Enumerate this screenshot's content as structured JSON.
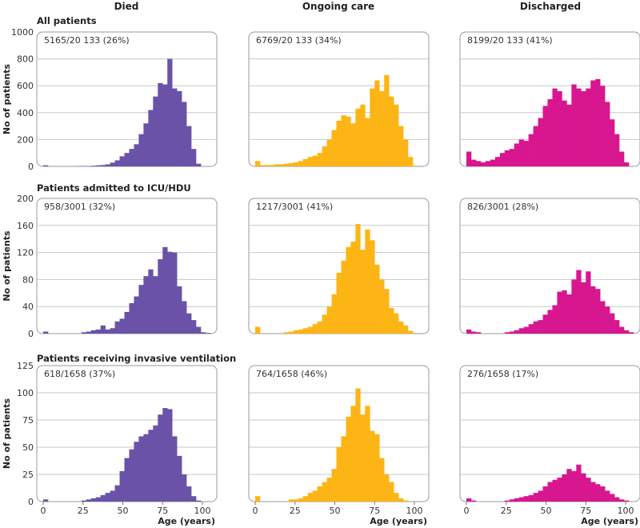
{
  "colors": {
    "died": "#6a52a8",
    "ongoing": "#fdb515",
    "discharged": "#d8168f",
    "grid": "#c8c8c8",
    "frame": "#999999"
  },
  "chart_data": {
    "type": "bar",
    "column_titles": [
      "Died",
      "Ongoing care",
      "Discharged"
    ],
    "ylabel": "No of patients",
    "xlabel": "Age (years)",
    "x_ticks": [
      0,
      25,
      50,
      75,
      100
    ],
    "bin_width_years": 3,
    "bin_starts": [
      0,
      3,
      6,
      9,
      12,
      15,
      18,
      21,
      24,
      27,
      30,
      33,
      36,
      39,
      42,
      45,
      48,
      51,
      54,
      57,
      60,
      63,
      66,
      69,
      72,
      75,
      78,
      81,
      84,
      87,
      90,
      93,
      96,
      99,
      102
    ],
    "grid": true,
    "rows": [
      {
        "title": "All patients",
        "ylim": [
          0,
          1000
        ],
        "y_ticks": [
          0,
          200,
          400,
          600,
          800,
          1000
        ],
        "panels": [
          {
            "group": "Died",
            "annotation": "5165/20 133 (26%)",
            "values": [
              8,
              0,
              0,
              0,
              0,
              0,
              0,
              2,
              3,
              3,
              5,
              8,
              10,
              15,
              28,
              45,
              75,
              100,
              130,
              165,
              240,
              320,
              420,
              520,
              620,
              610,
              800,
              580,
              560,
              480,
              300,
              130,
              20,
              0,
              0
            ]
          },
          {
            "group": "Ongoing care",
            "annotation": "6769/20 133 (34%)",
            "values": [
              40,
              10,
              10,
              10,
              15,
              15,
              20,
              25,
              30,
              40,
              55,
              70,
              80,
              100,
              150,
              200,
              270,
              340,
              380,
              370,
              320,
              430,
              460,
              360,
              580,
              640,
              560,
              680,
              520,
              460,
              300,
              200,
              70,
              5,
              0
            ]
          },
          {
            "group": "Discharged",
            "annotation": "8199/20 133 (41%)",
            "values": [
              110,
              50,
              40,
              30,
              40,
              50,
              70,
              100,
              120,
              130,
              170,
              200,
              190,
              240,
              300,
              360,
              450,
              500,
              580,
              560,
              490,
              460,
              610,
              580,
              560,
              580,
              640,
              650,
              600,
              480,
              350,
              240,
              110,
              30,
              0
            ]
          }
        ]
      },
      {
        "title": "Patients admitted to ICU/HDU",
        "ylim": [
          0,
          200
        ],
        "y_ticks": [
          0,
          40,
          80,
          120,
          160,
          200
        ],
        "panels": [
          {
            "group": "Died",
            "annotation": "958/3001 (32%)",
            "values": [
              3,
              0,
              0,
              0,
              0,
              0,
              0,
              0,
              2,
              3,
              5,
              6,
              12,
              6,
              8,
              18,
              22,
              32,
              45,
              55,
              72,
              85,
              95,
              85,
              110,
              128,
              121,
              120,
              70,
              48,
              30,
              20,
              10,
              2,
              1
            ]
          },
          {
            "group": "Ongoing care",
            "annotation": "1217/3001 (41%)",
            "values": [
              10,
              0,
              0,
              0,
              0,
              0,
              2,
              3,
              5,
              6,
              8,
              10,
              14,
              18,
              28,
              40,
              58,
              90,
              108,
              128,
              136,
              162,
              124,
              154,
              138,
              102,
              80,
              66,
              38,
              30,
              18,
              12,
              4,
              1,
              0
            ]
          },
          {
            "group": "Discharged",
            "annotation": "826/3001 (28%)",
            "values": [
              6,
              3,
              2,
              0,
              0,
              0,
              0,
              0,
              2,
              3,
              5,
              8,
              10,
              14,
              18,
              20,
              28,
              35,
              42,
              62,
              64,
              58,
              80,
              94,
              76,
              92,
              70,
              66,
              48,
              40,
              30,
              20,
              10,
              5,
              2
            ]
          }
        ]
      },
      {
        "title": "Patients receiving invasive ventilation",
        "ylim": [
          0,
          125
        ],
        "y_ticks": [
          0,
          25,
          50,
          75,
          100,
          125
        ],
        "panels": [
          {
            "group": "Died",
            "annotation": "618/1658 (37%)",
            "values": [
              2,
              0,
              0,
              0,
              0,
              0,
              0,
              0,
              1,
              2,
              3,
              4,
              6,
              8,
              10,
              15,
              28,
              40,
              48,
              55,
              60,
              62,
              66,
              70,
              80,
              86,
              85,
              60,
              42,
              25,
              14,
              5,
              1,
              0,
              0
            ]
          },
          {
            "group": "Ongoing care",
            "annotation": "764/1658 (46%)",
            "values": [
              5,
              0,
              0,
              0,
              0,
              0,
              0,
              2,
              2,
              3,
              5,
              8,
              10,
              14,
              18,
              22,
              30,
              50,
              60,
              78,
              88,
              104,
              80,
              88,
              65,
              62,
              40,
              25,
              18,
              8,
              3,
              1,
              0,
              0,
              0
            ]
          },
          {
            "group": "Discharged",
            "annotation": "276/1658 (17%)",
            "values": [
              3,
              1,
              0,
              0,
              0,
              0,
              0,
              0,
              1,
              2,
              3,
              4,
              5,
              6,
              8,
              10,
              14,
              18,
              20,
              22,
              25,
              30,
              28,
              34,
              26,
              22,
              18,
              16,
              14,
              10,
              7,
              4,
              2,
              1,
              0
            ]
          }
        ]
      }
    ]
  }
}
